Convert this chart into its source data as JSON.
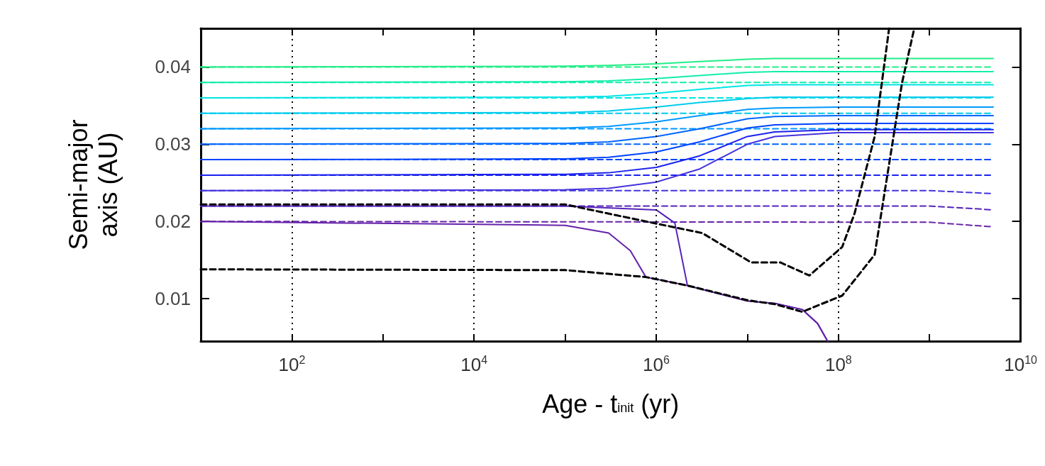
{
  "chart_data": {
    "type": "line",
    "xlabel": "Age - t$_{init}$ (yr)",
    "ylabel": "Semi-major axis (AU)",
    "log": "x",
    "grid": "x",
    "marker": "none",
    "xlim": [
      10,
      10000000000
    ],
    "ylim": [
      0.0045,
      0.045
    ],
    "xticks": [
      {
        "value": 10,
        "label": null
      },
      {
        "value": 100,
        "label": "10$^{2}$"
      },
      {
        "value": 1000,
        "label": null
      },
      {
        "value": 10000,
        "label": "10$^{4}$"
      },
      {
        "value": 100000,
        "label": null
      },
      {
        "value": 1000000,
        "label": "10$^{6}$"
      },
      {
        "value": 10000000,
        "label": null
      },
      {
        "value": 100000000,
        "label": "10$^{8}$"
      },
      {
        "value": 1000000000,
        "label": null
      },
      {
        "value": 10000000000,
        "label": "10$^{10}$"
      }
    ],
    "yticks": [
      0.01,
      0.02,
      0.03,
      0.04
    ],
    "series": [
      {
        "color": "#22ee88",
        "line_style": "dashed",
        "x": [
          10,
          5000000000
        ],
        "values": [
          0.04,
          0.04
        ]
      },
      {
        "color": "#11eeaa",
        "line_style": "dashed",
        "x": [
          10,
          5000000000
        ],
        "values": [
          0.038,
          0.038
        ]
      },
      {
        "color": "#00e5e5",
        "line_style": "dashed",
        "x": [
          10,
          5000000000
        ],
        "values": [
          0.036,
          0.036
        ]
      },
      {
        "color": "#00ccee",
        "line_style": "dashed",
        "x": [
          10,
          5000000000
        ],
        "values": [
          0.034,
          0.034
        ]
      },
      {
        "color": "#0099ff",
        "line_style": "dashed",
        "x": [
          10,
          5000000000
        ],
        "values": [
          0.032,
          0.032
        ]
      },
      {
        "color": "#0066ff",
        "line_style": "dashed",
        "x": [
          10,
          5000000000
        ],
        "values": [
          0.03,
          0.03
        ]
      },
      {
        "color": "#0044ff",
        "line_style": "dashed",
        "x": [
          10,
          5000000000
        ],
        "values": [
          0.028,
          0.028
        ]
      },
      {
        "color": "#1a22ee",
        "line_style": "dashed",
        "x": [
          10,
          5000000000
        ],
        "values": [
          0.026,
          0.026
        ]
      },
      {
        "color": "#4433dd",
        "line_style": "dashed",
        "x": [
          10,
          1000000000,
          5000000000
        ],
        "values": [
          0.024,
          0.024,
          0.0236
        ]
      },
      {
        "color": "#5522bb",
        "line_style": "dashed",
        "x": [
          10,
          1000000000,
          5000000000
        ],
        "values": [
          0.022,
          0.022,
          0.0215
        ]
      },
      {
        "color": "#6622aa",
        "line_style": "dashed",
        "x": [
          10,
          1000000000,
          5000000000
        ],
        "values": [
          0.02,
          0.0199,
          0.0193
        ]
      },
      {
        "color": "#22ee88",
        "line_style": "solid",
        "x": [
          10,
          100000,
          300000,
          1000000,
          3000000,
          10000000,
          20000000,
          100000000,
          5000000000
        ],
        "values": [
          0.04,
          0.0401,
          0.0402,
          0.0404,
          0.0407,
          0.041,
          0.0411,
          0.0411,
          0.0411
        ]
      },
      {
        "color": "#11eeaa",
        "line_style": "solid",
        "x": [
          10,
          100000,
          300000,
          1000000,
          3000000,
          10000000,
          20000000,
          100000000,
          5000000000
        ],
        "values": [
          0.038,
          0.0381,
          0.0382,
          0.0385,
          0.0389,
          0.0393,
          0.0394,
          0.0394,
          0.0394
        ]
      },
      {
        "color": "#00e5e5",
        "line_style": "solid",
        "x": [
          10,
          100000,
          300000,
          1000000,
          3000000,
          10000000,
          20000000,
          100000000,
          5000000000
        ],
        "values": [
          0.036,
          0.0361,
          0.0362,
          0.0366,
          0.0371,
          0.0376,
          0.0377,
          0.0377,
          0.0377
        ]
      },
      {
        "color": "#00ccee",
        "line_style": "solid",
        "x": [
          10,
          100000,
          300000,
          1000000,
          3000000,
          10000000,
          20000000,
          100000000,
          5000000000
        ],
        "values": [
          0.034,
          0.0341,
          0.0343,
          0.0348,
          0.0354,
          0.0359,
          0.0361,
          0.0361,
          0.0361
        ]
      },
      {
        "color": "#0099ff",
        "line_style": "solid",
        "x": [
          10,
          100000,
          300000,
          1000000,
          3000000,
          10000000,
          20000000,
          100000000,
          5000000000
        ],
        "values": [
          0.032,
          0.0321,
          0.0323,
          0.0329,
          0.0337,
          0.0345,
          0.0347,
          0.0348,
          0.0348
        ]
      },
      {
        "color": "#0066ff",
        "line_style": "solid",
        "x": [
          10,
          100000,
          300000,
          1000000,
          3000000,
          10000000,
          20000000,
          100000000,
          5000000000
        ],
        "values": [
          0.03,
          0.0301,
          0.0303,
          0.031,
          0.032,
          0.0333,
          0.0336,
          0.0337,
          0.0337
        ]
      },
      {
        "color": "#0044ff",
        "line_style": "solid",
        "x": [
          10,
          100000,
          300000,
          1000000,
          3000000,
          10000000,
          20000000,
          100000000,
          5000000000
        ],
        "values": [
          0.028,
          0.0281,
          0.0283,
          0.029,
          0.0303,
          0.0321,
          0.0325,
          0.0327,
          0.0327
        ]
      },
      {
        "color": "#1a22ee",
        "line_style": "solid",
        "x": [
          10,
          100000,
          300000,
          1000000,
          3000000,
          10000000,
          20000000,
          100000000,
          5000000000
        ],
        "values": [
          0.026,
          0.0261,
          0.0263,
          0.027,
          0.0285,
          0.031,
          0.0316,
          0.0319,
          0.0319
        ]
      },
      {
        "color": "#4433dd",
        "line_style": "solid",
        "x": [
          10,
          100000,
          300000,
          1000000,
          3000000,
          10000000,
          20000000,
          100000000,
          5000000000
        ],
        "values": [
          0.024,
          0.0241,
          0.0243,
          0.0251,
          0.0268,
          0.03,
          0.031,
          0.0315,
          0.0315
        ]
      },
      {
        "color": "#5522bb",
        "line_style": "solid",
        "x": [
          10,
          100000,
          1000000,
          1600000,
          2200000,
          10000000,
          20000000,
          40000000,
          59000000,
          76000000
        ],
        "values": [
          0.022,
          0.022,
          0.0215,
          0.0198,
          0.0117,
          0.0097,
          0.0094,
          0.0086,
          0.0068,
          0.0045
        ]
      },
      {
        "color": "#6622aa",
        "line_style": "solid",
        "x": [
          10,
          100000,
          300000,
          520000,
          770000,
          2200000,
          10000000,
          20000000,
          40000000,
          59000000,
          76000000
        ],
        "values": [
          0.02,
          0.0195,
          0.0185,
          0.0162,
          0.0128,
          0.0117,
          0.0097,
          0.0094,
          0.0086,
          0.0068,
          0.0045
        ]
      },
      {
        "color": "#000000",
        "line_style": "dashed",
        "x": [
          10,
          100000,
          770000,
          2200000,
          10000000,
          20000000,
          40000000,
          110000000,
          250000000,
          390000000,
          500000000,
          680000000
        ],
        "values": [
          0.0138,
          0.0137,
          0.0128,
          0.0117,
          0.0098,
          0.0093,
          0.0083,
          0.0104,
          0.0157,
          0.03,
          0.038,
          0.045
        ]
      },
      {
        "color": "#000000",
        "line_style": "dashed",
        "x": [
          10,
          100000,
          770000,
          3200000,
          11000000,
          23000000,
          48000000,
          110000000,
          150000000,
          250000000,
          360000000
        ],
        "values": [
          0.0222,
          0.0222,
          0.02,
          0.0185,
          0.0147,
          0.0147,
          0.013,
          0.0167,
          0.021,
          0.031,
          0.045
        ]
      }
    ]
  }
}
